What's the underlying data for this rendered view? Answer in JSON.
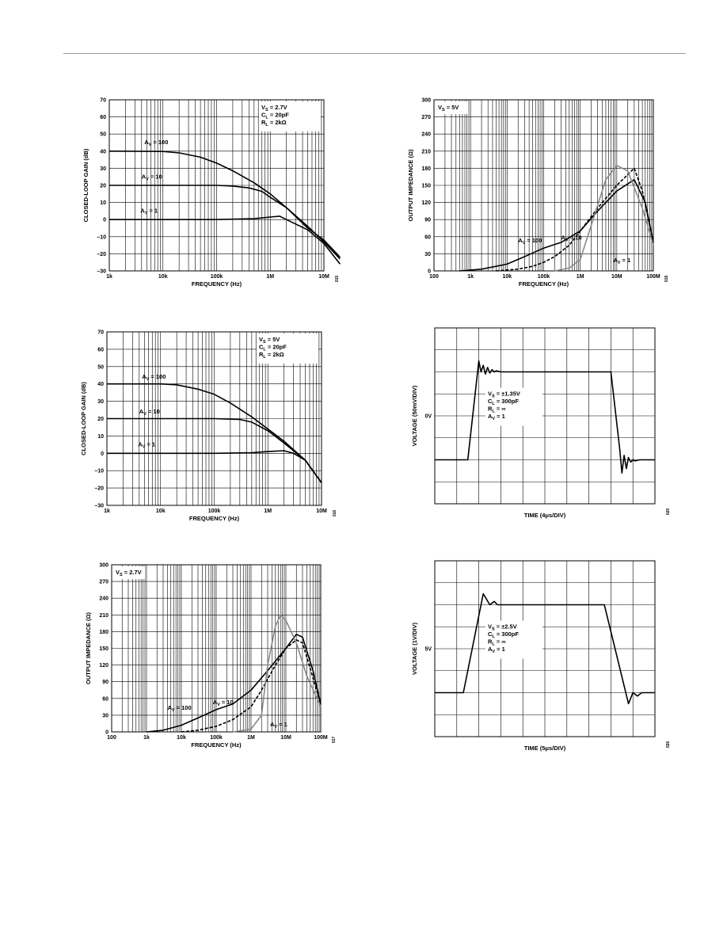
{
  "chart_data": [
    {
      "type": "line",
      "xscale": "log",
      "xlim": [
        1000,
        10000000
      ],
      "ylim": [
        -30,
        70
      ],
      "xticks": [
        [
          1000,
          "1k"
        ],
        [
          10000,
          "10k"
        ],
        [
          100000,
          "100k"
        ],
        [
          1000000,
          "1M"
        ],
        [
          10000000,
          "10M"
        ]
      ],
      "yticks": [
        [
          -30,
          "–30"
        ],
        [
          -20,
          "–20"
        ],
        [
          -10,
          "–10"
        ],
        [
          0,
          "0"
        ],
        [
          10,
          "10"
        ],
        [
          20,
          "20"
        ],
        [
          30,
          "30"
        ],
        [
          40,
          "40"
        ],
        [
          50,
          "50"
        ],
        [
          60,
          "60"
        ],
        [
          70,
          "70"
        ]
      ],
      "xlabel": "FREQUENCY (Hz)",
      "ylabel": "CLOSED-LOOP GAIN (dB)",
      "grid": true,
      "figure_number": "015",
      "conditions": [
        "VS = 2.7V",
        "CL = 20pF",
        "RL = 2kΩ"
      ],
      "series": [
        {
          "name": "AV = 100",
          "color": "#000000",
          "x": [
            1000,
            10000,
            20000,
            50000,
            100000,
            200000,
            500000,
            1000000,
            2000000,
            5000000,
            10000000,
            20000000
          ],
          "y": [
            40,
            39.8,
            39,
            36.5,
            33,
            28.5,
            21.5,
            15,
            7,
            -5,
            -12,
            -22
          ]
        },
        {
          "name": "AV = 10",
          "color": "#000000",
          "x": [
            1000,
            100000,
            200000,
            400000,
            700000,
            1000000,
            2000000,
            5000000,
            10000000,
            20000000
          ],
          "y": [
            20,
            20,
            19.6,
            18.5,
            16.5,
            13,
            7,
            -4,
            -13,
            -23
          ]
        },
        {
          "name": "AV = 1",
          "color": "#000000",
          "x": [
            1000,
            100000,
            500000,
            1000000,
            1500000,
            2000000,
            5000000,
            10000000,
            20000000
          ],
          "y": [
            0,
            0,
            0.5,
            1.5,
            2,
            0,
            -6,
            -14,
            -26
          ]
        }
      ],
      "labels": [
        {
          "text": "AV = 100",
          "x": 4500,
          "y": 44
        },
        {
          "text": "AV = 10",
          "x": 4000,
          "y": 24
        },
        {
          "text": "AV = 1",
          "x": 3800,
          "y": 4
        }
      ]
    },
    {
      "type": "line",
      "xscale": "log",
      "xlim": [
        100,
        100000000
      ],
      "ylim": [
        0,
        300
      ],
      "xticks": [
        [
          100,
          "100"
        ],
        [
          1000,
          "1k"
        ],
        [
          10000,
          "10k"
        ],
        [
          100000,
          "100k"
        ],
        [
          1000000,
          "1M"
        ],
        [
          10000000,
          "10M"
        ],
        [
          100000000,
          "100M"
        ]
      ],
      "yticks": [
        [
          0,
          "0"
        ],
        [
          30,
          "30"
        ],
        [
          60,
          "60"
        ],
        [
          90,
          "90"
        ],
        [
          120,
          "120"
        ],
        [
          150,
          "150"
        ],
        [
          180,
          "180"
        ],
        [
          210,
          "210"
        ],
        [
          240,
          "240"
        ],
        [
          270,
          "270"
        ],
        [
          300,
          "300"
        ]
      ],
      "xlabel": "FREQUENCY (Hz)",
      "ylabel": "OUTPUT IMPEDANCE (Ω)",
      "grid": true,
      "figure_number": "018",
      "conditions": [
        "VS = 5V"
      ],
      "series": [
        {
          "name": "AV = 100",
          "color": "#000000",
          "x": [
            500,
            2000,
            10000,
            30000,
            100000,
            300000,
            1000000,
            3000000,
            10000000,
            30000000,
            60000000,
            100000000
          ],
          "y": [
            0,
            3,
            12,
            25,
            40,
            50,
            70,
            105,
            140,
            160,
            120,
            50
          ]
        },
        {
          "name": "AV = 10",
          "color": "#000000",
          "dashed": true,
          "x": [
            5000,
            20000,
            50000,
            100000,
            200000,
            500000,
            1000000,
            3000000,
            10000000,
            30000000,
            50000000,
            100000000
          ],
          "y": [
            0,
            3,
            8,
            15,
            25,
            45,
            70,
            110,
            150,
            180,
            140,
            50
          ]
        },
        {
          "name": "AV = 1",
          "color": "#888888",
          "x": [
            200000,
            500000,
            1000000,
            2000000,
            5000000,
            10000000,
            20000000,
            50000000,
            100000000
          ],
          "y": [
            0,
            5,
            20,
            80,
            160,
            185,
            175,
            110,
            45
          ]
        }
      ],
      "labels": [
        {
          "text": "AV = 100",
          "x": 20000,
          "y": 50
        },
        {
          "text": "AV = 10",
          "x": 300000,
          "y": 55
        },
        {
          "text": "AV = 1",
          "x": 8000000,
          "y": 15
        }
      ]
    },
    {
      "type": "line",
      "xscale": "log",
      "xlim": [
        1000,
        10000000
      ],
      "ylim": [
        -30,
        70
      ],
      "xticks": [
        [
          1000,
          "1k"
        ],
        [
          10000,
          "10k"
        ],
        [
          100000,
          "100k"
        ],
        [
          1000000,
          "1M"
        ],
        [
          10000000,
          "10M"
        ]
      ],
      "yticks": [
        [
          -30,
          "–30"
        ],
        [
          -20,
          "–20"
        ],
        [
          -10,
          "–10"
        ],
        [
          0,
          "0"
        ],
        [
          10,
          "10"
        ],
        [
          20,
          "20"
        ],
        [
          30,
          "30"
        ],
        [
          40,
          "40"
        ],
        [
          50,
          "50"
        ],
        [
          60,
          "60"
        ],
        [
          70,
          "70"
        ]
      ],
      "xlabel": "FREQUENCY (Hz)",
      "ylabel": "CLOSED-LOOP GAIN (dB)",
      "grid": true,
      "figure_number": "016",
      "conditions": [
        "VS = 5V",
        "CL = 20pF",
        "RL = 2kΩ"
      ],
      "series": [
        {
          "name": "AV = 100",
          "color": "#000000",
          "x": [
            1000,
            10000,
            20000,
            50000,
            100000,
            200000,
            500000,
            1000000,
            2000000,
            5000000,
            10000000
          ],
          "y": [
            40,
            40,
            39.5,
            37,
            34,
            29,
            21,
            14,
            7,
            -4,
            -17
          ]
        },
        {
          "name": "AV = 10",
          "color": "#000000",
          "x": [
            1000,
            100000,
            300000,
            500000,
            1000000,
            2000000,
            5000000,
            10000000
          ],
          "y": [
            20,
            20,
            19.5,
            18,
            13,
            6,
            -4,
            -17
          ]
        },
        {
          "name": "AV = 1",
          "color": "#000000",
          "x": [
            1000,
            100000,
            500000,
            1000000,
            2000000,
            3000000,
            5000000,
            10000000
          ],
          "y": [
            0,
            0,
            0.3,
            1,
            1.5,
            0,
            -4,
            -17
          ]
        }
      ],
      "labels": [
        {
          "text": "AV = 100",
          "x": 4500,
          "y": 43
        },
        {
          "text": "AV = 10",
          "x": 4000,
          "y": 23
        },
        {
          "text": "AV = 1",
          "x": 3800,
          "y": 4
        }
      ]
    },
    {
      "type": "line",
      "xlim": [
        0,
        10
      ],
      "ylim": [
        -4,
        4
      ],
      "yticks": [
        [
          0,
          "0V"
        ]
      ],
      "xlabel": "TIME (4μs/DIV)",
      "ylabel": "VOLTAGE (50mV/DIV)",
      "grid": true,
      "figure_number": "020",
      "conditions": [
        "VS = ±1.35V",
        "CL = 300pF",
        "RL = ∞",
        "AV = 1"
      ],
      "series": [
        {
          "name": "",
          "color": "#000000",
          "x": [
            0,
            1.5,
            2,
            2.1,
            2.2,
            2.3,
            2.4,
            2.5,
            2.6,
            2.7,
            2.8,
            3,
            3.5,
            8.0,
            8.4,
            8.5,
            8.6,
            8.7,
            8.8,
            8.9,
            9.0,
            9.1,
            9.3,
            10
          ],
          "y": [
            -2,
            -2,
            2.5,
            2.0,
            2.3,
            1.9,
            2.2,
            1.95,
            2.1,
            2.0,
            2.05,
            2.0,
            2.0,
            2.0,
            -1.5,
            -2.6,
            -1.8,
            -2.4,
            -1.9,
            -2.1,
            -2.0,
            -2.05,
            -2.0,
            -2.0
          ]
        }
      ]
    },
    {
      "type": "line",
      "xscale": "log",
      "xlim": [
        100,
        100000000
      ],
      "ylim": [
        0,
        300
      ],
      "xticks": [
        [
          100,
          "100"
        ],
        [
          1000,
          "1k"
        ],
        [
          10000,
          "10k"
        ],
        [
          100000,
          "100k"
        ],
        [
          1000000,
          "1M"
        ],
        [
          10000000,
          "10M"
        ],
        [
          100000000,
          "100M"
        ]
      ],
      "yticks": [
        [
          0,
          "0"
        ],
        [
          30,
          "30"
        ],
        [
          60,
          "60"
        ],
        [
          90,
          "90"
        ],
        [
          120,
          "120"
        ],
        [
          150,
          "150"
        ],
        [
          180,
          "180"
        ],
        [
          210,
          "210"
        ],
        [
          240,
          "240"
        ],
        [
          270,
          "270"
        ],
        [
          300,
          "300"
        ]
      ],
      "xlabel": "FREQUENCY (Hz)",
      "ylabel": "OUTPUT IMPEDANCE (Ω)",
      "grid": true,
      "figure_number": "017",
      "conditions": [
        "VS = 2.7V"
      ],
      "series": [
        {
          "name": "AV = 100",
          "color": "#000000",
          "x": [
            1000,
            3000,
            10000,
            30000,
            100000,
            300000,
            1000000,
            3000000,
            10000000,
            20000000,
            30000000,
            60000000,
            100000000
          ],
          "y": [
            0,
            3,
            12,
            25,
            40,
            50,
            75,
            110,
            150,
            175,
            170,
            110,
            50
          ]
        },
        {
          "name": "AV = 10",
          "color": "#000000",
          "dashed": true,
          "x": [
            10000,
            30000,
            100000,
            300000,
            1000000,
            2000000,
            5000000,
            10000000,
            20000000,
            30000000,
            100000000
          ],
          "y": [
            0,
            3,
            10,
            22,
            45,
            75,
            120,
            150,
            165,
            160,
            50
          ]
        },
        {
          "name": "AV = 1",
          "color": "#888888",
          "x": [
            300000,
            1000000,
            2000000,
            3000000,
            5000000,
            7000000,
            10000000,
            20000000,
            40000000,
            100000000
          ],
          "y": [
            0,
            5,
            30,
            120,
            190,
            210,
            200,
            160,
            100,
            45
          ]
        }
      ],
      "labels": [
        {
          "text": "AV = 100",
          "x": 4000,
          "y": 40
        },
        {
          "text": "AV = 10",
          "x": 80000,
          "y": 50
        },
        {
          "text": "AV = 1",
          "x": 3500000,
          "y": 10
        }
      ]
    },
    {
      "type": "line",
      "xlim": [
        0,
        10
      ],
      "ylim": [
        -4,
        4
      ],
      "yticks": [
        [
          0,
          "5V"
        ]
      ],
      "xlabel": "TIME (5μs/DIV)",
      "ylabel": "VOLTAGE (1V/DIV)",
      "grid": true,
      "figure_number": "020",
      "conditions": [
        "VS = ±2.5V",
        "CL = 300pF",
        "RL = ∞",
        "AV = 1"
      ],
      "series": [
        {
          "name": "",
          "color": "#000000",
          "x": [
            0,
            1.3,
            2.2,
            2.5,
            2.7,
            2.85,
            3,
            7.7,
            8.8,
            9.0,
            9.2,
            9.4,
            9.6,
            10
          ],
          "y": [
            -2,
            -2,
            2.5,
            2.0,
            2.15,
            2.0,
            2.0,
            2.0,
            -2.5,
            -2.0,
            -2.15,
            -2.0,
            -2.0,
            -2.0
          ]
        }
      ]
    }
  ]
}
